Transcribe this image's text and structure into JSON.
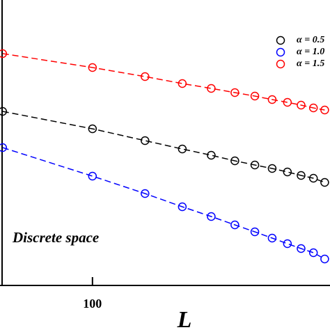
{
  "chart_data": {
    "type": "scatter",
    "log_x": true,
    "x": [
      50,
      100,
      150,
      200,
      250,
      300,
      350,
      400,
      450,
      500,
      550,
      600
    ],
    "series": [
      {
        "name": "α = 0.5",
        "color": "#000000",
        "values": [
          250,
          225,
          208,
          196,
          187,
          179,
          173,
          168,
          163,
          158,
          154,
          148
        ]
      },
      {
        "name": "α = 1.0",
        "color": "#0000ff",
        "values": [
          198,
          157,
          132,
          113,
          99,
          87,
          77,
          68,
          60,
          53,
          47,
          38
        ]
      },
      {
        "name": "α = 1.5",
        "color": "#ff0000",
        "values": [
          333,
          313,
          300,
          290,
          283,
          277,
          272,
          267,
          263,
          259,
          255,
          252
        ]
      }
    ],
    "xlim": [
      49,
      625
    ],
    "xticks": [
      100
    ],
    "ylim": [
      0,
      410
    ],
    "xlabel": "L",
    "annotation": "Discrete space",
    "legend": "upper right"
  }
}
